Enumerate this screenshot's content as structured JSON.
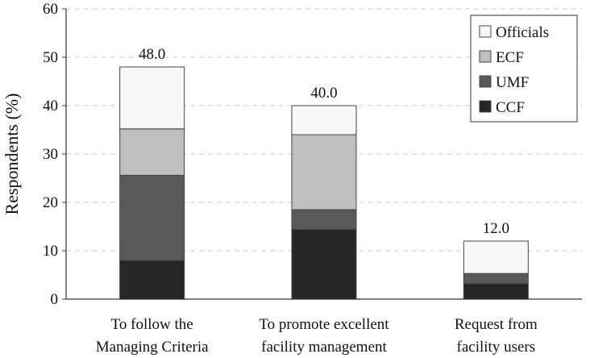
{
  "chart_data": {
    "type": "bar",
    "stacked": true,
    "title": "",
    "xlabel": "",
    "ylabel": "Respondents (%)",
    "ylim": [
      0,
      60
    ],
    "yticks": [
      0,
      10,
      20,
      30,
      40,
      50,
      60
    ],
    "grid": "horizontal dashed",
    "legend_position": "top-right",
    "categories": [
      [
        "To follow the",
        "Managing Criteria"
      ],
      [
        "To promote excellent",
        "facility management"
      ],
      [
        "Request from",
        "facility users"
      ]
    ],
    "totals": [
      "48.0",
      "40.0",
      "12.0"
    ],
    "series": [
      {
        "name": "CCF",
        "color": "#262626",
        "values": [
          8.0,
          14.4,
          3.2
        ]
      },
      {
        "name": "UMF",
        "color": "#595959",
        "values": [
          17.6,
          4.1,
          2.1
        ]
      },
      {
        "name": "ECF",
        "color": "#bfbfbf",
        "values": [
          9.6,
          15.5,
          0.0
        ]
      },
      {
        "name": "Officials",
        "color": "#f8f8f8",
        "values": [
          12.8,
          6.0,
          6.7
        ]
      }
    ],
    "legend_order": [
      "Officials",
      "ECF",
      "UMF",
      "CCF"
    ]
  }
}
